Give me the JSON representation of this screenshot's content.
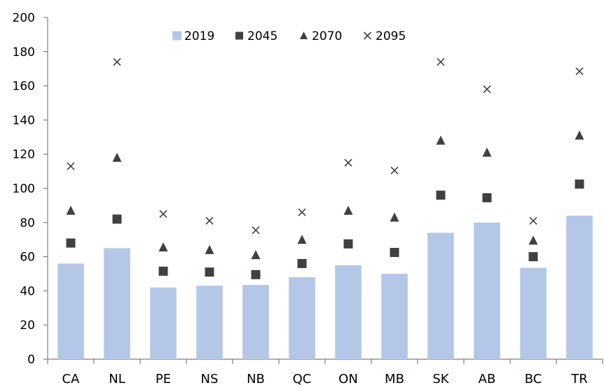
{
  "chart_data": {
    "type": "bar",
    "title": "",
    "xlabel": "",
    "ylabel": "",
    "categories": [
      "CA",
      "NL",
      "PE",
      "NS",
      "NB",
      "QC",
      "ON",
      "MB",
      "SK",
      "AB",
      "BC",
      "TR"
    ],
    "ylim": [
      0,
      200
    ],
    "yticks": [
      0,
      20,
      40,
      60,
      80,
      100,
      120,
      140,
      160,
      180,
      200
    ],
    "grid": false,
    "legend_position": "top",
    "series": [
      {
        "name": "2019",
        "type": "bar",
        "marker": "bar",
        "color": "#b4c7e7",
        "values": [
          56,
          65,
          42,
          43,
          43.5,
          48,
          55,
          50,
          74,
          80,
          53.5,
          84
        ]
      },
      {
        "name": "2045",
        "type": "scatter",
        "marker": "square",
        "color": "#404040",
        "values": [
          68,
          82,
          51.5,
          51,
          49.5,
          56,
          67.5,
          62.5,
          96,
          94.5,
          60,
          102.5
        ]
      },
      {
        "name": "2070",
        "type": "scatter",
        "marker": "triangle",
        "color": "#404040",
        "values": [
          87,
          118,
          65.5,
          64,
          61,
          70,
          87,
          83,
          128,
          121,
          69.5,
          131
        ]
      },
      {
        "name": "2095",
        "type": "scatter",
        "marker": "cross",
        "color": "#404040",
        "values": [
          113,
          174,
          85,
          81,
          75.5,
          86,
          115,
          110.5,
          174,
          158,
          81,
          168.5
        ]
      }
    ]
  }
}
